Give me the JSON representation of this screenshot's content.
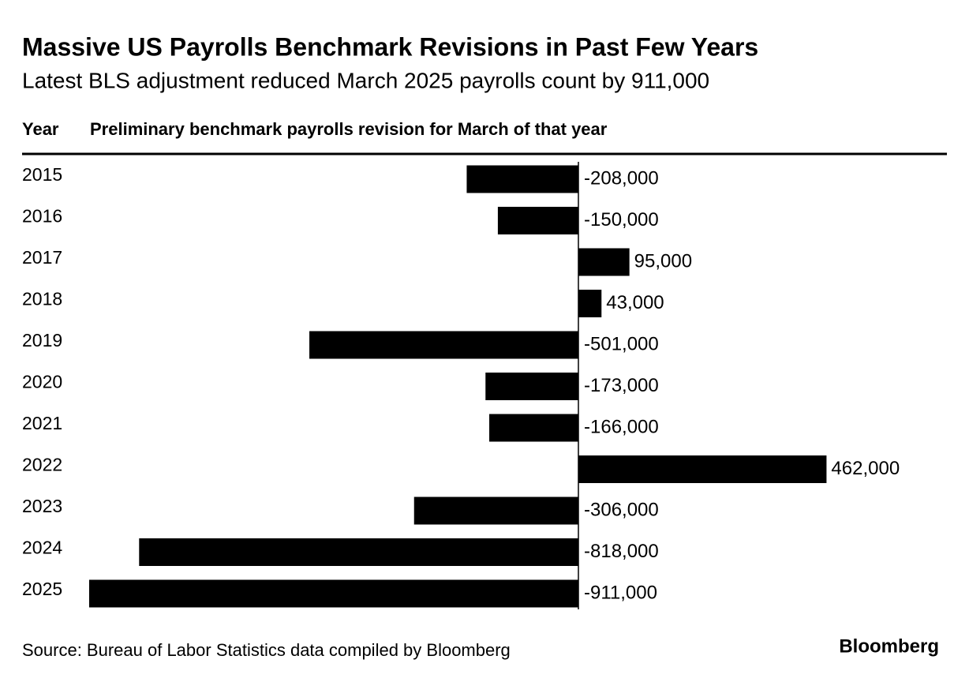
{
  "chart_data": {
    "type": "bar",
    "orientation": "horizontal",
    "title": "Massive US Payrolls Benchmark Revisions in Past Few Years",
    "subtitle": "Latest BLS adjustment reduced March 2025 payrolls count by 911,000",
    "category_header": "Year",
    "value_header": "Preliminary benchmark payrolls revision for March of that year",
    "categories": [
      "2015",
      "2016",
      "2017",
      "2018",
      "2019",
      "2020",
      "2021",
      "2022",
      "2023",
      "2024",
      "2025"
    ],
    "values": [
      -208000,
      -150000,
      95000,
      43000,
      -501000,
      -173000,
      -166000,
      462000,
      -306000,
      -818000,
      -911000
    ],
    "value_labels": [
      "-208,000",
      "-150,000",
      "95,000",
      "43,000",
      "-501,000",
      "-173,000",
      "-166,000",
      "462,000",
      "-306,000",
      "-818,000",
      "-911,000"
    ],
    "color": "#000000",
    "source": "Source: Bureau of Labor Statistics data compiled by Bloomberg",
    "brand": "Bloomberg"
  }
}
